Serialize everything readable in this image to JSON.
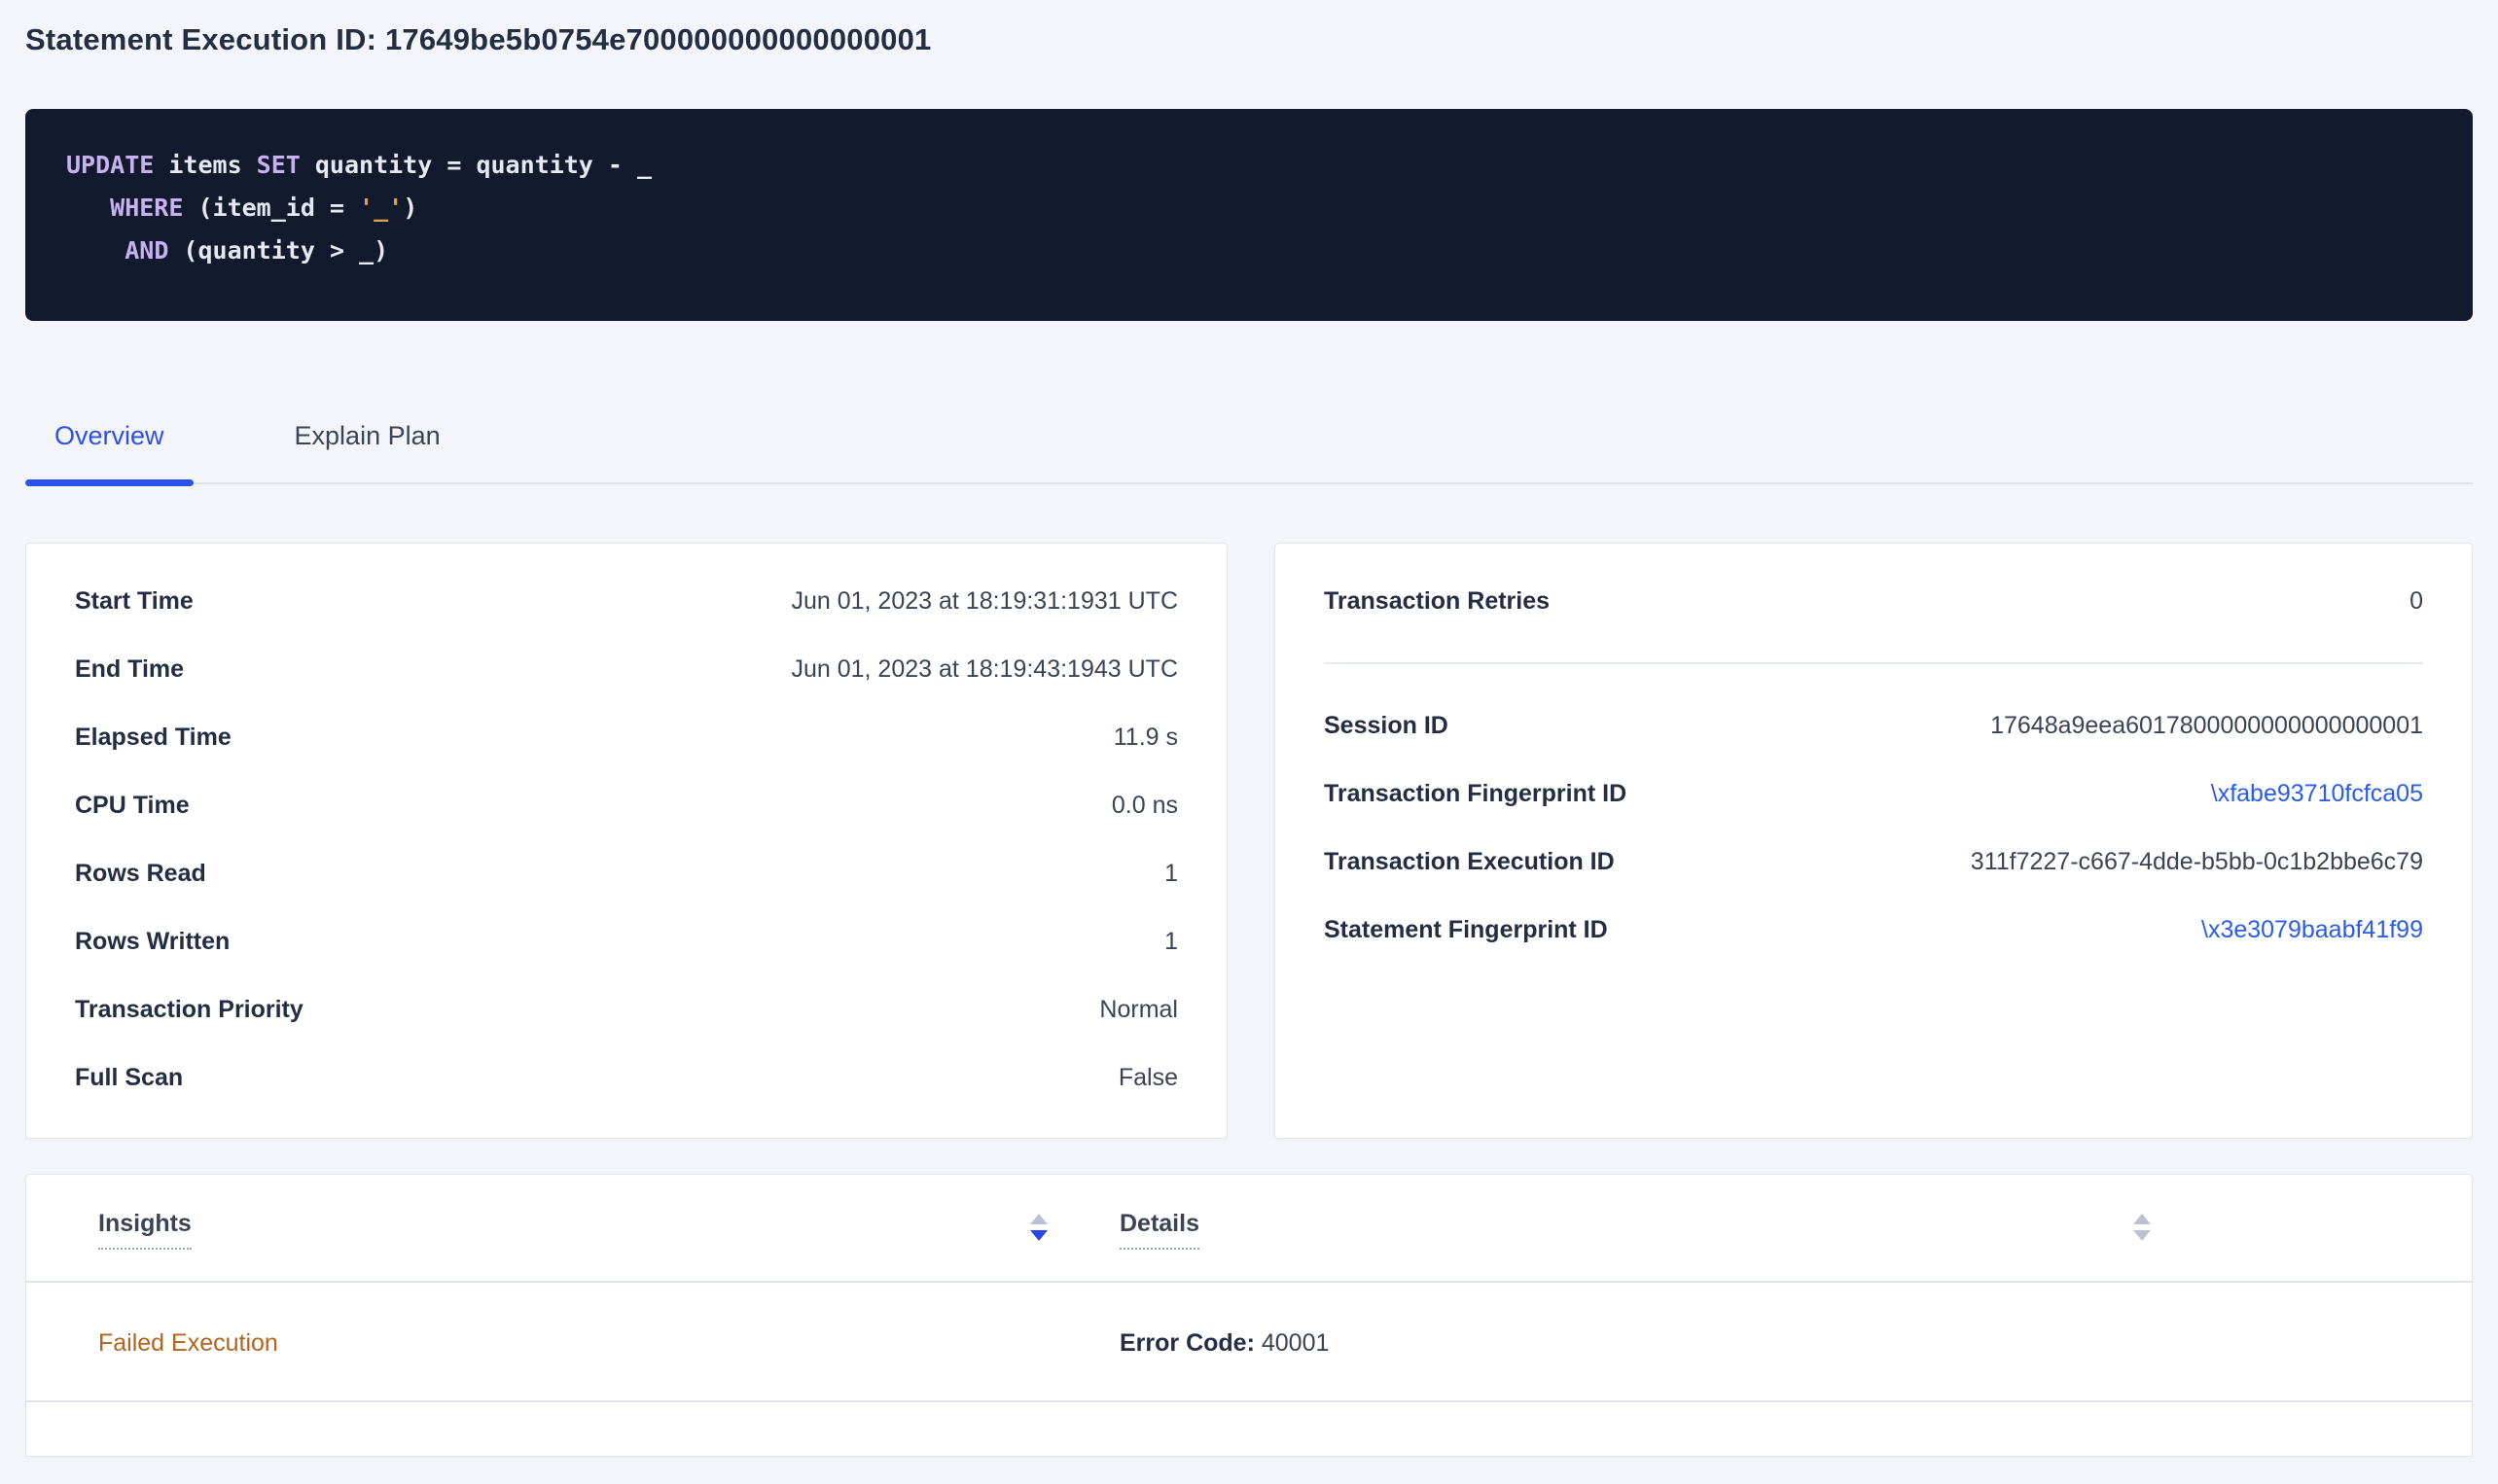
{
  "page": {
    "title": "Statement Execution ID: 17649be5b0754e700000000000000001"
  },
  "sql": {
    "line1": {
      "kw1": "UPDATE",
      "t1": " items ",
      "kw2": "SET",
      "t2": " quantity = quantity - _"
    },
    "line2": {
      "indent": "   ",
      "kw": "WHERE",
      "t1": " (item_id = ",
      "str": "'_'",
      "t2": ")"
    },
    "line3": {
      "indent": "    ",
      "kw": "AND",
      "t1": " (quantity > _)"
    }
  },
  "tabs": {
    "overview": "Overview",
    "explain_plan": "Explain Plan"
  },
  "overview_card": {
    "rows": [
      {
        "label": "Start Time",
        "value": "Jun 01, 2023 at 18:19:31:1931 UTC"
      },
      {
        "label": "End Time",
        "value": "Jun 01, 2023 at 18:19:43:1943 UTC"
      },
      {
        "label": "Elapsed Time",
        "value": "11.9 s"
      },
      {
        "label": "CPU Time",
        "value": "0.0 ns"
      },
      {
        "label": "Rows Read",
        "value": "1"
      },
      {
        "label": "Rows Written",
        "value": "1"
      },
      {
        "label": "Transaction Priority",
        "value": "Normal"
      },
      {
        "label": "Full Scan",
        "value": "False"
      }
    ]
  },
  "transaction_card": {
    "retries": {
      "label": "Transaction Retries",
      "value": "0"
    },
    "rows": [
      {
        "label": "Session ID",
        "value": "17648a9eea6017800000000000000001"
      },
      {
        "label": "Transaction Fingerprint ID",
        "value": "\\xfabe93710fcfca05"
      },
      {
        "label": "Transaction Execution ID",
        "value": "311f7227-c667-4dde-b5bb-0c1b2bbe6c79"
      },
      {
        "label": "Statement Fingerprint ID",
        "value": "\\x3e3079baabf41f99"
      }
    ]
  },
  "insights_table": {
    "columns": {
      "insights": "Insights",
      "details": "Details"
    },
    "sort_state": {
      "insights": "desc",
      "details": "none"
    },
    "row": {
      "insight": "Failed Execution",
      "detail_label": "Error Code:",
      "detail_value": " 40001"
    }
  },
  "colors": {
    "accent_blue": "#2b51e8",
    "link_blue": "#2a5ce6",
    "insight_warning_orange": "#b2641c",
    "sql_background": "#141a2d",
    "sql_keyword": "#c6b2ef",
    "sql_string": "#dfa14e",
    "page_background": "#f4f5fa"
  }
}
